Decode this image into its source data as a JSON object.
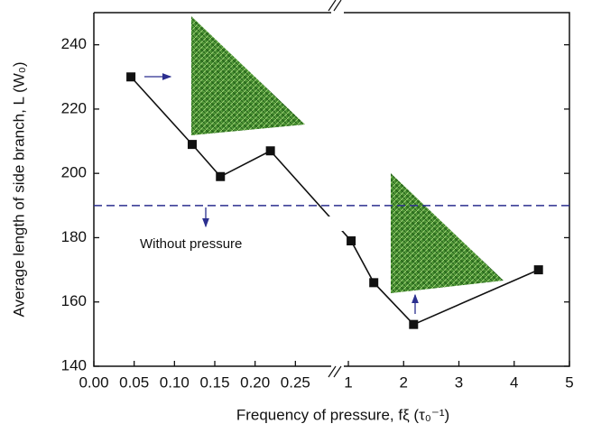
{
  "chart_data": {
    "type": "line",
    "x_label": "Frequency of pressure, fξ (τ₀⁻¹)",
    "y_label": "Average length of side branch, L (W₀)",
    "x": [
      0.046,
      0.122,
      0.157,
      0.219,
      1.05,
      1.46,
      2.18,
      4.44
    ],
    "values": [
      230,
      209,
      199,
      207,
      179,
      166,
      153,
      170
    ],
    "color": "#111111",
    "x_segments": [
      {
        "xlim": [
          0,
          0.3
        ],
        "xticks": [
          {
            "value": 0,
            "label": "0.00"
          },
          0.05,
          {
            "value": 0.1,
            "label": "0.10"
          },
          0.15,
          {
            "value": 0.2,
            "label": "0.20"
          },
          0.25
        ]
      },
      {
        "xlim": [
          0.82,
          5
        ],
        "xticks": [
          1,
          2,
          3,
          4,
          5
        ]
      }
    ],
    "ylim": [
      140,
      250
    ],
    "yticks": [
      140,
      160,
      180,
      200,
      220,
      240
    ],
    "reference_line": {
      "value": 190,
      "color": "#2b2f8f",
      "label": "Without pressure"
    }
  }
}
